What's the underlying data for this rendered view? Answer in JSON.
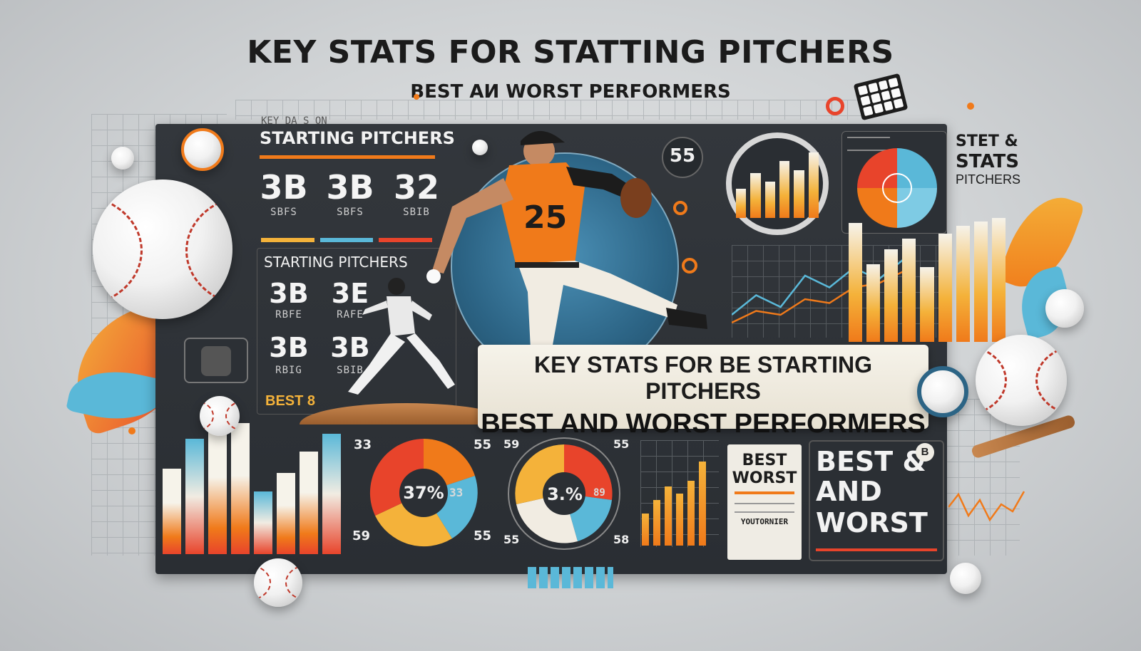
{
  "headline": "KEY STATS FOR STATTING PITCHERS",
  "subheadline": "BEST AИ WORST PERFORMERS",
  "left_panel": {
    "faded_caption": "KEY  DA  S  ON",
    "title": "STARTING PITCHERS",
    "stats": [
      {
        "value": "3B",
        "label": "SBFS"
      },
      {
        "value": "3B",
        "label": "SBFS"
      },
      {
        "value": "32",
        "label": "SBIB"
      }
    ],
    "sub_title": "STARTING PITCHERS",
    "sub_stats": [
      {
        "value": "3B",
        "label": "RBFE"
      },
      {
        "value": "3E",
        "label": "RAFE"
      },
      {
        "value": "3B",
        "label": "RBIG"
      },
      {
        "value": "3B",
        "label": "SBIB"
      }
    ],
    "best_label": "BEST 8"
  },
  "pitcher": {
    "jersey_number": "25"
  },
  "badge_55": "55",
  "right_card": {
    "title_line1": "STET &",
    "title_line2": "STATS",
    "title_line3": "PITCHERS"
  },
  "banner": {
    "line1": "KEY STATS FOR BE STARTING PITCHERS",
    "line2": "BEST AND WORST PERFORMERS"
  },
  "donut_left": {
    "center": "37%",
    "side": "33",
    "labels": [
      "33",
      "55",
      "59",
      "55"
    ]
  },
  "donut_right": {
    "center": "3.%",
    "side": "89",
    "labels": [
      "59",
      "55",
      "55",
      "58"
    ]
  },
  "best_worst_card": {
    "line1": "BEST",
    "line2": "WORST",
    "footer": "YOUTORNIER"
  },
  "best_worst_big": {
    "line1": "BEST &",
    "line2": "AND",
    "line3": "WORST",
    "badge": "B"
  },
  "colors": {
    "dash_bg": "#2f3338",
    "accent_orange": "#f07a1a",
    "accent_red": "#e8442b",
    "accent_blue": "#5ab8d8",
    "accent_yellow": "#f4b23a"
  },
  "chart_data": [
    {
      "type": "bar",
      "title": "",
      "values": [
        65,
        88,
        98,
        100,
        48,
        62,
        78,
        92
      ]
    },
    {
      "type": "bar",
      "values": [
        92,
        60,
        72,
        80,
        58,
        84,
        90,
        93,
        96
      ]
    },
    {
      "type": "bar",
      "values": [
        30,
        42,
        55,
        48,
        60,
        78
      ]
    },
    {
      "type": "line",
      "series": [
        {
          "values": [
            20,
            45,
            30,
            70,
            55,
            80,
            65,
            90
          ]
        },
        {
          "values": [
            10,
            25,
            20,
            40,
            35,
            55,
            60,
            75
          ]
        }
      ]
    }
  ]
}
